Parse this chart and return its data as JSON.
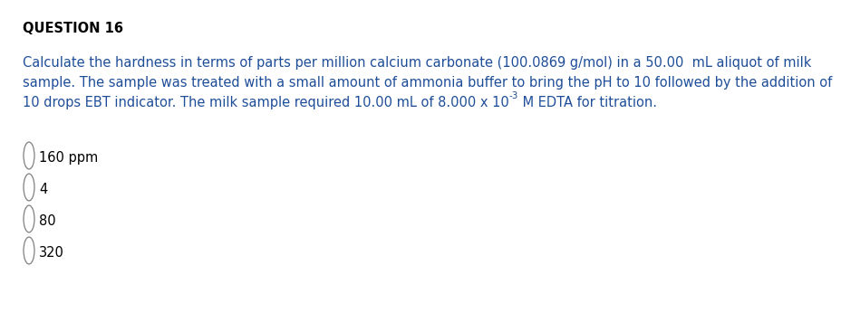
{
  "title": "QUESTION 16",
  "title_color": "#000000",
  "title_fontsize": 10.5,
  "question_text_line1": "Calculate the hardness in terms of parts per million calcium carbonate (100.0869 g/mol) in a 50.00  mL aliquot of milk",
  "question_text_line2": "sample. The sample was treated with a small amount of ammonia buffer to bring the pH to 10 followed by the addition of",
  "question_text_line3_part1": "10 drops EBT indicator. The milk sample required 10.00 mL of 8.000 x 10",
  "question_text_line3_superscript": "-3",
  "question_text_line3_part2": " M EDTA for titration.",
  "question_text_color": "#1F4E99",
  "question_fontsize": 10.5,
  "options": [
    "160 ppm",
    "4",
    "80",
    "320"
  ],
  "option_color": "#000000",
  "option_fontsize": 10.5,
  "background_color": "#ffffff",
  "circle_color": "#808080"
}
